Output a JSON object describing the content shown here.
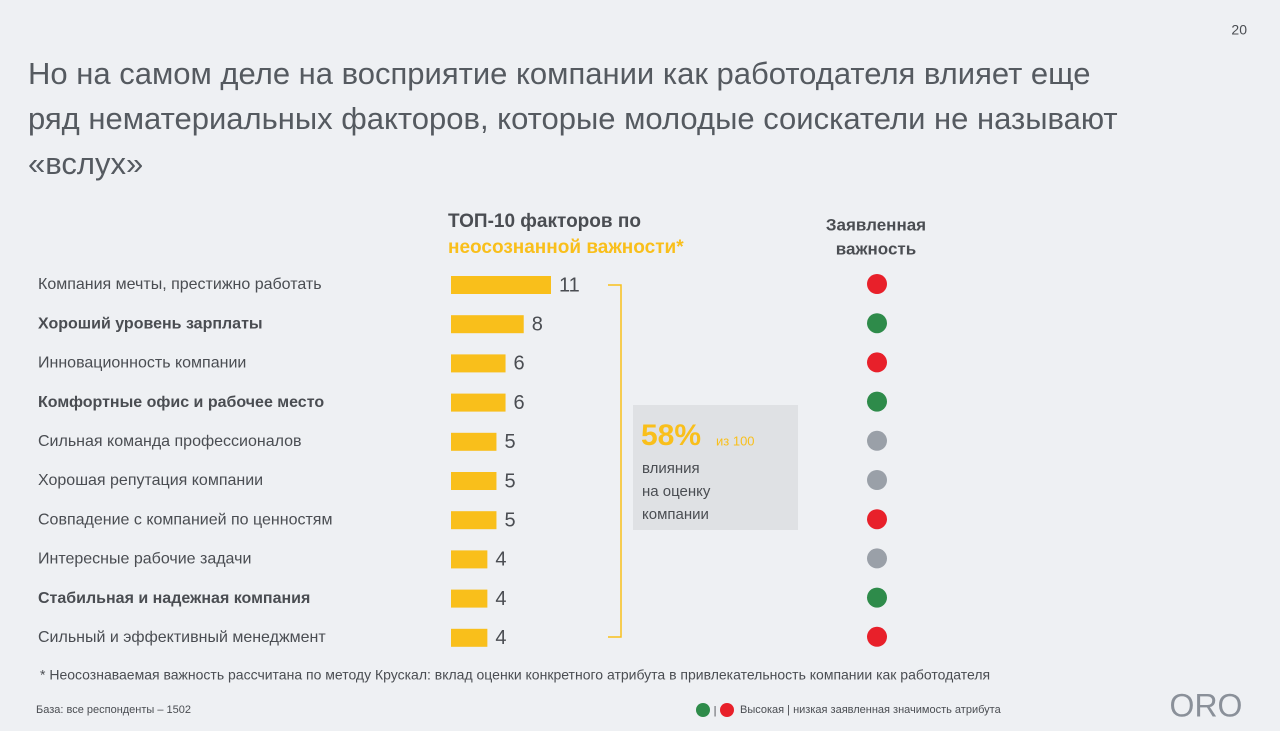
{
  "page_number": "20",
  "title_lines": [
    "Но на самом деле на восприятие компании как работодателя влияет еще",
    "ряд нематериальных факторов, которые молодые соискатели не называют",
    "«вслух»"
  ],
  "chart_data": {
    "type": "bar",
    "orientation": "horizontal",
    "title": "ТОП-10 факторов по",
    "title_highlight": "неосознанной важности",
    "title_mark": "*",
    "categories": [
      "Компания мечты, престижно работать",
      "Хороший уровень зарплаты",
      "Инновационность компании",
      "Комфортные офис и рабочее место",
      "Сильная команда профессионалов",
      "Хорошая репутация компании",
      "Совпадение с компанией по ценностям",
      "Интересные рабочие задачи",
      "Стабильная и надежная компания",
      "Сильный и эффективный менеджмент"
    ],
    "bold": [
      false,
      true,
      false,
      true,
      false,
      false,
      false,
      false,
      true,
      false
    ],
    "values": [
      11,
      8,
      6,
      6,
      5,
      5,
      5,
      4,
      4,
      4
    ],
    "color": "#f9bf1b",
    "stated_importance_header": [
      "Заявленная",
      "важность"
    ],
    "stated_importance_colors": [
      "#e8202a",
      "#2e8b4a",
      "#e8202a",
      "#2e8b4a",
      "#9aa0a8",
      "#9aa0a8",
      "#e8202a",
      "#9aa0a8",
      "#2e8b4a",
      "#e8202a"
    ],
    "callout": {
      "big": "58%",
      "small": "из 100",
      "lines": [
        "влияния",
        "на оценку",
        "компании"
      ]
    }
  },
  "footnote": "* Неосознаваемая важность рассчитана по методу Крускал: вклад оценки конкретного атрибута в привлекательность компании как работодателя",
  "base": "База: все респонденты – 1502",
  "legend": {
    "colors": [
      "#2e8b4a",
      "#e8202a"
    ],
    "separator": "|",
    "text": "Высокая | низкая заявленная значимость атрибута"
  },
  "logo": "ORO"
}
